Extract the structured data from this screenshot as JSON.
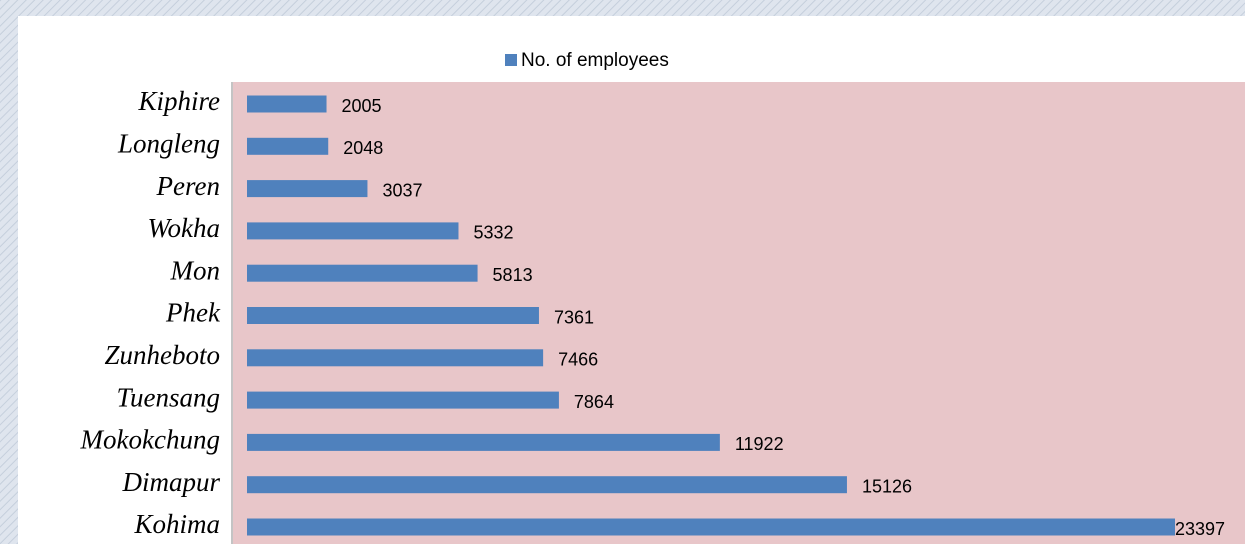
{
  "chart_data": {
    "type": "bar",
    "orientation": "horizontal",
    "categories": [
      "Kiphire",
      "Longleng",
      "Peren",
      "Wokha",
      "Mon",
      "Phek",
      "Zunheboto",
      "Tuensang",
      "Mokokchung",
      "Dimapur",
      "Kohima"
    ],
    "series": [
      {
        "name": "No. of employees",
        "color": "#4f81bd",
        "values": [
          2005,
          2048,
          3037,
          5332,
          5813,
          7361,
          7466,
          7864,
          11922,
          15126,
          23397
        ]
      }
    ],
    "legend": "top"
  }
}
